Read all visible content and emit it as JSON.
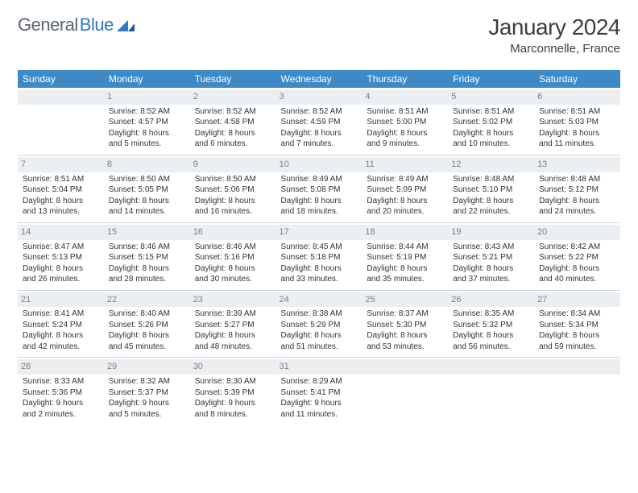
{
  "brand": {
    "part1": "General",
    "part2": "Blue"
  },
  "title": {
    "month_year": "January 2024",
    "location": "Marconnelle, France"
  },
  "style": {
    "header_bg": "#3d8ac7",
    "header_text": "#ffffff",
    "row_divider": "#c7d6e3",
    "daynum_bg": "#eceff2",
    "daynum_color": "#777f88",
    "body_text": "#333333",
    "title_color": "#3a3f44",
    "logo_gray": "#5a6470",
    "logo_blue": "#2f78c2",
    "page_bg": "#ffffff",
    "font_family": "Arial",
    "th_fontsize": 12,
    "td_fontsize": 10,
    "title_fontsize": 28,
    "location_fontsize": 15
  },
  "weekdays": [
    "Sunday",
    "Monday",
    "Tuesday",
    "Wednesday",
    "Thursday",
    "Friday",
    "Saturday"
  ],
  "weeks": [
    [
      null,
      {
        "n": "1",
        "sr": "8:52 AM",
        "ss": "4:57 PM",
        "d1": "8 hours",
        "d2": "and 5 minutes."
      },
      {
        "n": "2",
        "sr": "8:52 AM",
        "ss": "4:58 PM",
        "d1": "8 hours",
        "d2": "and 6 minutes."
      },
      {
        "n": "3",
        "sr": "8:52 AM",
        "ss": "4:59 PM",
        "d1": "8 hours",
        "d2": "and 7 minutes."
      },
      {
        "n": "4",
        "sr": "8:51 AM",
        "ss": "5:00 PM",
        "d1": "8 hours",
        "d2": "and 9 minutes."
      },
      {
        "n": "5",
        "sr": "8:51 AM",
        "ss": "5:02 PM",
        "d1": "8 hours",
        "d2": "and 10 minutes."
      },
      {
        "n": "6",
        "sr": "8:51 AM",
        "ss": "5:03 PM",
        "d1": "8 hours",
        "d2": "and 11 minutes."
      }
    ],
    [
      {
        "n": "7",
        "sr": "8:51 AM",
        "ss": "5:04 PM",
        "d1": "8 hours",
        "d2": "and 13 minutes."
      },
      {
        "n": "8",
        "sr": "8:50 AM",
        "ss": "5:05 PM",
        "d1": "8 hours",
        "d2": "and 14 minutes."
      },
      {
        "n": "9",
        "sr": "8:50 AM",
        "ss": "5:06 PM",
        "d1": "8 hours",
        "d2": "and 16 minutes."
      },
      {
        "n": "10",
        "sr": "8:49 AM",
        "ss": "5:08 PM",
        "d1": "8 hours",
        "d2": "and 18 minutes."
      },
      {
        "n": "11",
        "sr": "8:49 AM",
        "ss": "5:09 PM",
        "d1": "8 hours",
        "d2": "and 20 minutes."
      },
      {
        "n": "12",
        "sr": "8:48 AM",
        "ss": "5:10 PM",
        "d1": "8 hours",
        "d2": "and 22 minutes."
      },
      {
        "n": "13",
        "sr": "8:48 AM",
        "ss": "5:12 PM",
        "d1": "8 hours",
        "d2": "and 24 minutes."
      }
    ],
    [
      {
        "n": "14",
        "sr": "8:47 AM",
        "ss": "5:13 PM",
        "d1": "8 hours",
        "d2": "and 26 minutes."
      },
      {
        "n": "15",
        "sr": "8:46 AM",
        "ss": "5:15 PM",
        "d1": "8 hours",
        "d2": "and 28 minutes."
      },
      {
        "n": "16",
        "sr": "8:46 AM",
        "ss": "5:16 PM",
        "d1": "8 hours",
        "d2": "and 30 minutes."
      },
      {
        "n": "17",
        "sr": "8:45 AM",
        "ss": "5:18 PM",
        "d1": "8 hours",
        "d2": "and 33 minutes."
      },
      {
        "n": "18",
        "sr": "8:44 AM",
        "ss": "5:19 PM",
        "d1": "8 hours",
        "d2": "and 35 minutes."
      },
      {
        "n": "19",
        "sr": "8:43 AM",
        "ss": "5:21 PM",
        "d1": "8 hours",
        "d2": "and 37 minutes."
      },
      {
        "n": "20",
        "sr": "8:42 AM",
        "ss": "5:22 PM",
        "d1": "8 hours",
        "d2": "and 40 minutes."
      }
    ],
    [
      {
        "n": "21",
        "sr": "8:41 AM",
        "ss": "5:24 PM",
        "d1": "8 hours",
        "d2": "and 42 minutes."
      },
      {
        "n": "22",
        "sr": "8:40 AM",
        "ss": "5:26 PM",
        "d1": "8 hours",
        "d2": "and 45 minutes."
      },
      {
        "n": "23",
        "sr": "8:39 AM",
        "ss": "5:27 PM",
        "d1": "8 hours",
        "d2": "and 48 minutes."
      },
      {
        "n": "24",
        "sr": "8:38 AM",
        "ss": "5:29 PM",
        "d1": "8 hours",
        "d2": "and 51 minutes."
      },
      {
        "n": "25",
        "sr": "8:37 AM",
        "ss": "5:30 PM",
        "d1": "8 hours",
        "d2": "and 53 minutes."
      },
      {
        "n": "26",
        "sr": "8:35 AM",
        "ss": "5:32 PM",
        "d1": "8 hours",
        "d2": "and 56 minutes."
      },
      {
        "n": "27",
        "sr": "8:34 AM",
        "ss": "5:34 PM",
        "d1": "8 hours",
        "d2": "and 59 minutes."
      }
    ],
    [
      {
        "n": "28",
        "sr": "8:33 AM",
        "ss": "5:36 PM",
        "d1": "9 hours",
        "d2": "and 2 minutes."
      },
      {
        "n": "29",
        "sr": "8:32 AM",
        "ss": "5:37 PM",
        "d1": "9 hours",
        "d2": "and 5 minutes."
      },
      {
        "n": "30",
        "sr": "8:30 AM",
        "ss": "5:39 PM",
        "d1": "9 hours",
        "d2": "and 8 minutes."
      },
      {
        "n": "31",
        "sr": "8:29 AM",
        "ss": "5:41 PM",
        "d1": "9 hours",
        "d2": "and 11 minutes."
      },
      null,
      null,
      null
    ]
  ],
  "labels": {
    "sunrise": "Sunrise:",
    "sunset": "Sunset:",
    "daylight": "Daylight:"
  }
}
